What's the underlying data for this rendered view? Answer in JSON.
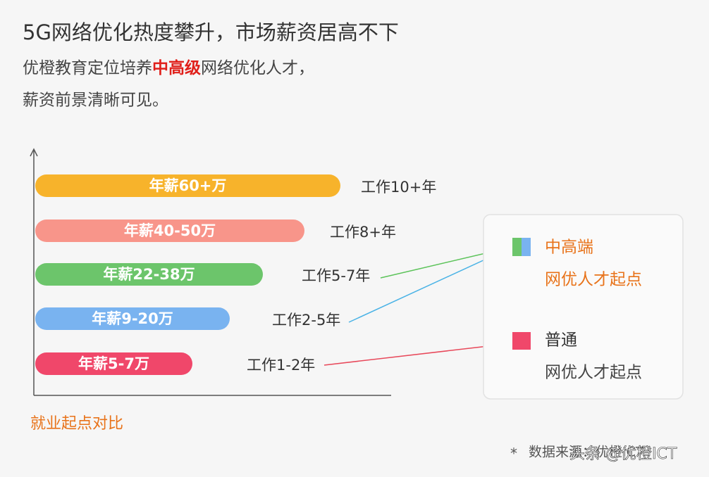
{
  "header": {
    "title": "5G网络优化热度攀升，市场薪资居高不下",
    "subtitle": {
      "before": "优橙教育定位培养",
      "highlight": "中高级",
      "after": "网络优化人才，",
      "line2": "薪资前景清晰可见。"
    }
  },
  "bars": [
    {
      "label": "年薪60+万",
      "experience": "工作10+年"
    },
    {
      "label": "年薪40-50万",
      "experience": "工作8+年"
    },
    {
      "label": "年薪22-38万",
      "experience": "工作5-7年"
    },
    {
      "label": "年薪9-20万",
      "experience": "工作2-5年"
    },
    {
      "label": "年薪5-7万",
      "experience": "工作1-2年"
    }
  ],
  "caption": "就业起点对比",
  "legend": [
    {
      "title": "中高端",
      "subtitle": "网优人才起点"
    },
    {
      "title": "普通",
      "subtitle": "网优人才起点"
    }
  ],
  "footnote": {
    "star": "*",
    "text": "数据来源：优橙ICT"
  },
  "watermark": "头条 @优橙ICT"
}
